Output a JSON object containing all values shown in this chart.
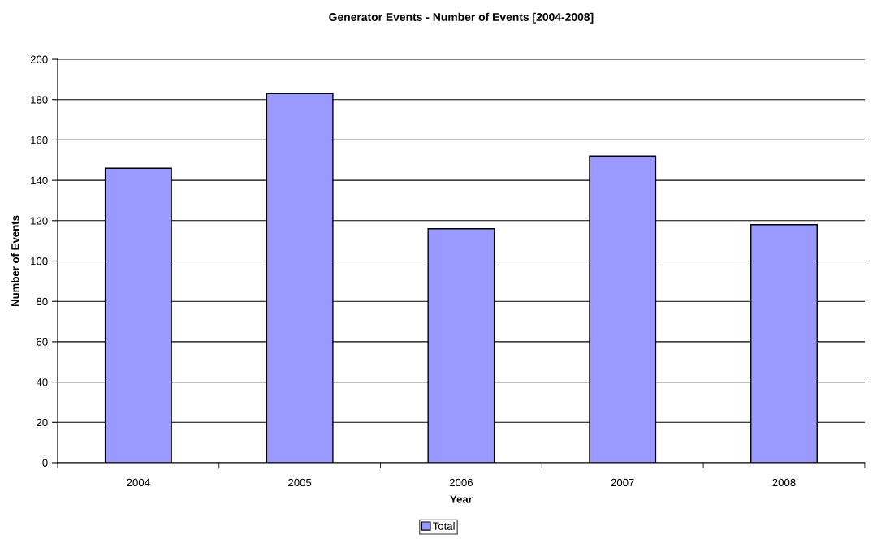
{
  "chart_data": {
    "type": "bar",
    "title": "Generator Events - Number of Events [2004-2008]",
    "xlabel": "Year",
    "ylabel": "Number of Events",
    "categories": [
      "2004",
      "2005",
      "2006",
      "2007",
      "2008"
    ],
    "series": [
      {
        "name": "Total",
        "color": "#9999ff",
        "values": [
          146,
          183,
          116,
          152,
          118
        ]
      }
    ],
    "ylim": [
      0,
      200
    ],
    "yticks": [
      0,
      20,
      40,
      60,
      80,
      100,
      120,
      140,
      160,
      180,
      200
    ],
    "grid": "y",
    "legend": "bottom"
  }
}
